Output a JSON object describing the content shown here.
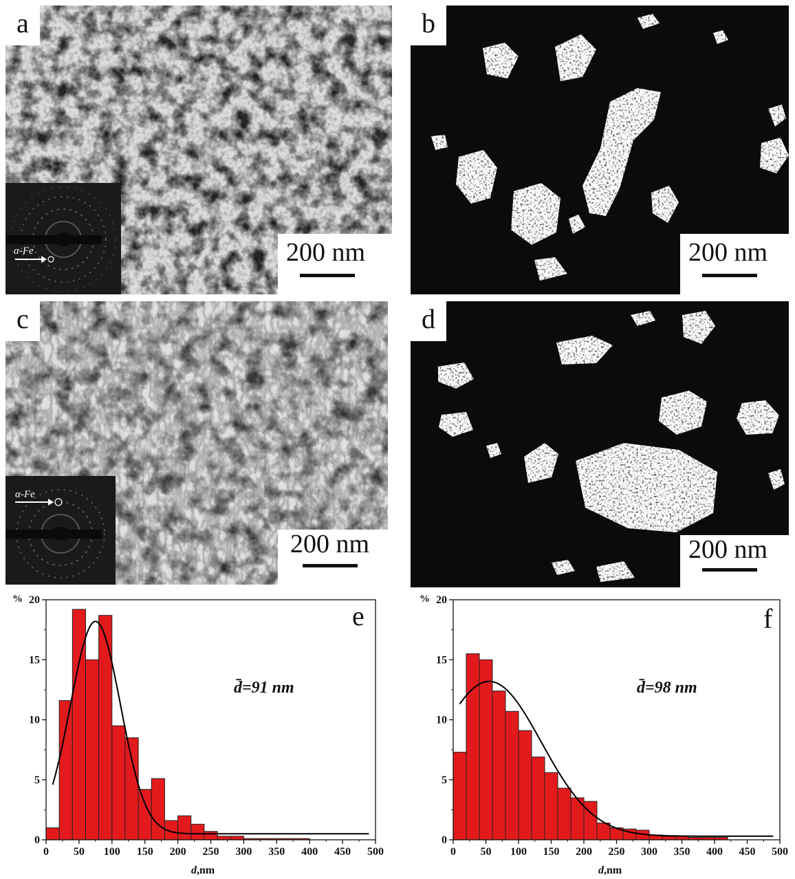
{
  "panels": {
    "a": {
      "letter": "a",
      "scale": "200 nm",
      "inset_phase": "α-Fe"
    },
    "b": {
      "letter": "b",
      "scale": "200 nm"
    },
    "c": {
      "letter": "c",
      "scale": "200 nm",
      "inset_phase": "α-Fe"
    },
    "d": {
      "letter": "d",
      "scale": "200 nm"
    }
  },
  "colors": {
    "bar": "#e31a1c",
    "bar_stroke": "#222222",
    "curve": "#000000"
  },
  "chart_data": [
    {
      "type": "bar",
      "panel_letter": "e",
      "annotation": "d̄=91 nm",
      "y_unit_label": "%",
      "xlabel_var": "d",
      "xlabel_unit": ",nm",
      "xlim": [
        0,
        500
      ],
      "ylim": [
        0,
        20
      ],
      "xticks": [
        0,
        50,
        100,
        150,
        200,
        250,
        300,
        350,
        400,
        450,
        500
      ],
      "yticks": [
        0,
        5,
        10,
        15,
        20
      ],
      "bin_width": 20,
      "bins": [
        0,
        20,
        40,
        60,
        80,
        100,
        120,
        140,
        160,
        180,
        200,
        220,
        240,
        260,
        280,
        300,
        320,
        340,
        360,
        380
      ],
      "values": [
        1.0,
        11.6,
        19.2,
        15.0,
        18.7,
        9.5,
        8.5,
        4.2,
        5.1,
        1.6,
        2.0,
        1.3,
        0.7,
        0.3,
        0.3,
        0.1,
        0.1,
        0.1,
        0.1,
        0.1
      ],
      "fit": {
        "type": "gaussian",
        "center": 75,
        "sigma": 38,
        "amplitude": 17.7,
        "baseline": 0.5,
        "x_range": [
          10,
          490
        ]
      },
      "grid": false
    },
    {
      "type": "bar",
      "panel_letter": "f",
      "annotation": "d̄=98 nm",
      "y_unit_label": "%",
      "xlabel_var": "d",
      "xlabel_unit": ",nm",
      "xlim": [
        0,
        500
      ],
      "ylim": [
        0,
        20
      ],
      "xticks": [
        0,
        50,
        100,
        150,
        200,
        250,
        300,
        350,
        400,
        450,
        500
      ],
      "yticks": [
        0,
        5,
        10,
        15,
        20
      ],
      "bin_width": 20,
      "bins": [
        0,
        20,
        40,
        60,
        80,
        100,
        120,
        140,
        160,
        180,
        200,
        220,
        240,
        260,
        280,
        300,
        320,
        340,
        360,
        380,
        400
      ],
      "values": [
        7.3,
        15.5,
        15.0,
        12.4,
        10.7,
        9.1,
        6.9,
        5.6,
        4.3,
        3.5,
        3.2,
        1.4,
        1.0,
        0.9,
        0.8,
        0.4,
        0.3,
        0.3,
        0.2,
        0.2,
        0.2
      ],
      "fit": {
        "type": "gaussian",
        "center": 55,
        "sigma": 80,
        "amplitude": 12.9,
        "baseline": 0.3,
        "x_range": [
          10,
          490
        ]
      },
      "grid": false
    }
  ]
}
